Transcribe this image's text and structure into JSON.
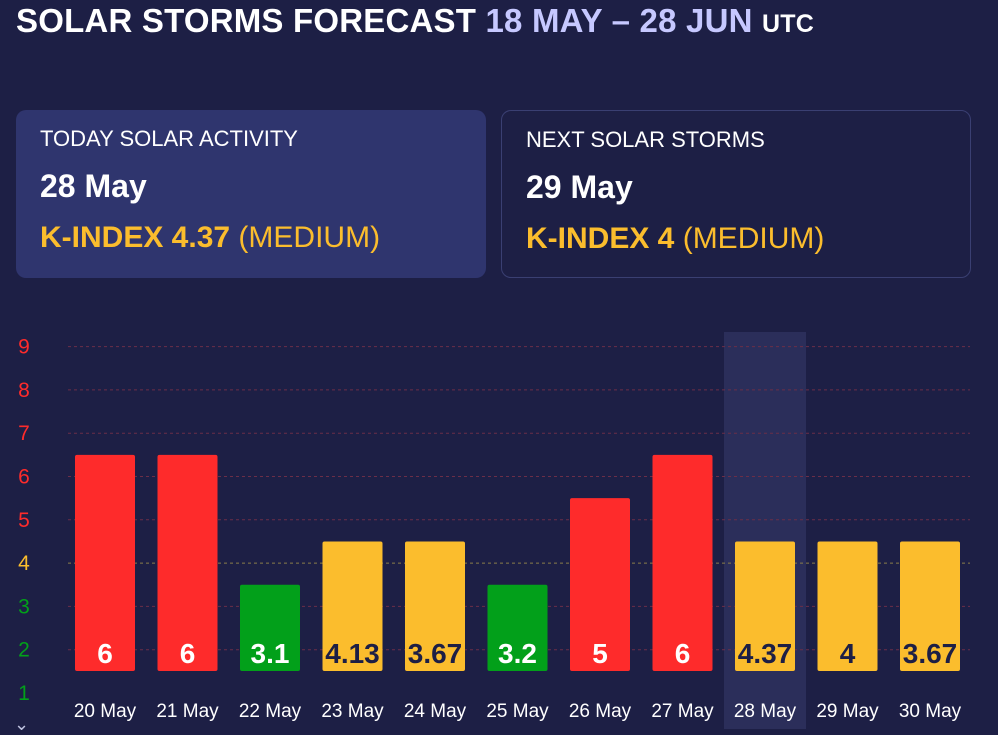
{
  "header": {
    "title": "SOLAR STORMS FORECAST",
    "range": "18 MAY – 28 JUN",
    "tz": "UTC"
  },
  "today": {
    "label": "TODAY SOLAR ACTIVITY",
    "date": "28 May",
    "kindex": "K-INDEX 4.37",
    "level": "(MEDIUM)"
  },
  "next": {
    "label": "NEXT SOLAR STORMS",
    "date": "29 May",
    "kindex": "K-INDEX 4",
    "level": "(MEDIUM)"
  },
  "colors": {
    "background": "#1d1f45",
    "high": "#fe2b2b",
    "medium": "#fbbd2d",
    "low": "#02a01a",
    "accent": "#c6c8ff"
  },
  "chart_data": {
    "type": "bar",
    "categories": [
      "20 May",
      "21 May",
      "22 May",
      "23 May",
      "24 May",
      "25 May",
      "26 May",
      "27 May",
      "28 May",
      "29 May",
      "30 May"
    ],
    "values": [
      6,
      6,
      3.1,
      4.13,
      3.67,
      3.2,
      5,
      6,
      4.37,
      4,
      3.67
    ],
    "labels": [
      "6",
      "6",
      "3.1",
      "4.13",
      "3.67",
      "3.2",
      "5",
      "6",
      "4.37",
      "4",
      "3.67"
    ],
    "bar_levels": [
      6.5,
      6.5,
      3.5,
      4.5,
      4.5,
      3.5,
      5.5,
      6.5,
      4.5,
      4.5,
      4.5
    ],
    "level_class": [
      "high",
      "high",
      "low",
      "medium",
      "medium",
      "low",
      "high",
      "high",
      "medium",
      "medium",
      "medium"
    ],
    "highlight_index": 8,
    "yticks": [
      1,
      2,
      3,
      4,
      5,
      6,
      7,
      8,
      9
    ],
    "ylim": [
      1,
      9
    ],
    "grid": true,
    "title": "",
    "xlabel": "",
    "ylabel": ""
  }
}
